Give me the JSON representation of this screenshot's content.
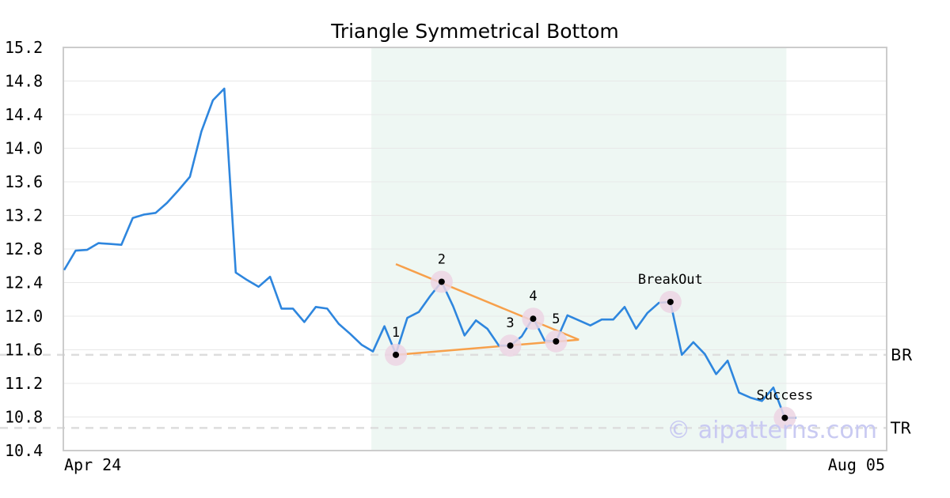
{
  "chart_data": {
    "type": "line",
    "title": "Triangle Symmetrical Bottom",
    "ylim": [
      10.4,
      15.2
    ],
    "ytick_labels": [
      "15.2",
      "14.8",
      "14.4",
      "14.0",
      "13.6",
      "13.2",
      "12.8",
      "12.4",
      "12.0",
      "11.6",
      "11.2",
      "10.8",
      "10.4"
    ],
    "x_start_label": "Apr 24",
    "x_end_label": "Aug 05",
    "grid": true,
    "colors": {
      "price": "#2e86de",
      "trendline": "#f7a04b",
      "pattern_zone": "#eef7f3",
      "level_line": "#dddddd",
      "marker_halo": "#ecd5e3",
      "marker": "#000000",
      "axes": "#cccccc",
      "watermark": "#c9caf2"
    },
    "series": [
      {
        "values": [
          12.55,
          12.78,
          12.79,
          12.87,
          12.86,
          12.85,
          13.17,
          13.21,
          13.23,
          13.35,
          13.5,
          13.66,
          14.2,
          14.57,
          14.71,
          12.52,
          12.43,
          12.35,
          12.47,
          12.09,
          12.09,
          11.93,
          12.11,
          12.09,
          11.91,
          11.79,
          11.66,
          11.58,
          11.88,
          11.55,
          11.98,
          12.05,
          12.24,
          12.41,
          12.12,
          11.77,
          11.95,
          11.85,
          11.65,
          11.65,
          11.76,
          11.98,
          11.71,
          11.7,
          12.01,
          11.95,
          11.89,
          11.96,
          11.96,
          12.11,
          11.85,
          12.04,
          12.16,
          12.17,
          11.54,
          11.69,
          11.55,
          11.31,
          11.47,
          11.09,
          11.03,
          10.99,
          11.15,
          10.79,
          10.79
        ]
      }
    ],
    "pattern_zone": {
      "start_index": 27,
      "end_index": 63
    },
    "trendlines": [
      {
        "from": [
          29,
          11.54
        ],
        "to": [
          45,
          11.72
        ]
      },
      {
        "from": [
          29,
          12.62
        ],
        "to": [
          45,
          11.72
        ]
      }
    ],
    "levels": [
      {
        "label": "BR",
        "value": 11.54
      },
      {
        "label": "TR",
        "value": 10.67
      }
    ],
    "points": [
      {
        "label": "1",
        "index": 29,
        "value": 11.54,
        "label_pos": "above"
      },
      {
        "label": "2",
        "index": 33,
        "value": 12.41,
        "label_pos": "above"
      },
      {
        "label": "3",
        "index": 39,
        "value": 11.65,
        "label_pos": "above"
      },
      {
        "label": "4",
        "index": 41,
        "value": 11.97,
        "label_pos": "above"
      },
      {
        "label": "5",
        "index": 43,
        "value": 11.7,
        "label_pos": "above"
      },
      {
        "label": "BreakOut",
        "index": 53,
        "value": 12.17,
        "label_pos": "above"
      },
      {
        "label": "Success",
        "index": 63,
        "value": 10.79,
        "label_pos": "above"
      }
    ],
    "watermark": "© aipatterns.com"
  }
}
